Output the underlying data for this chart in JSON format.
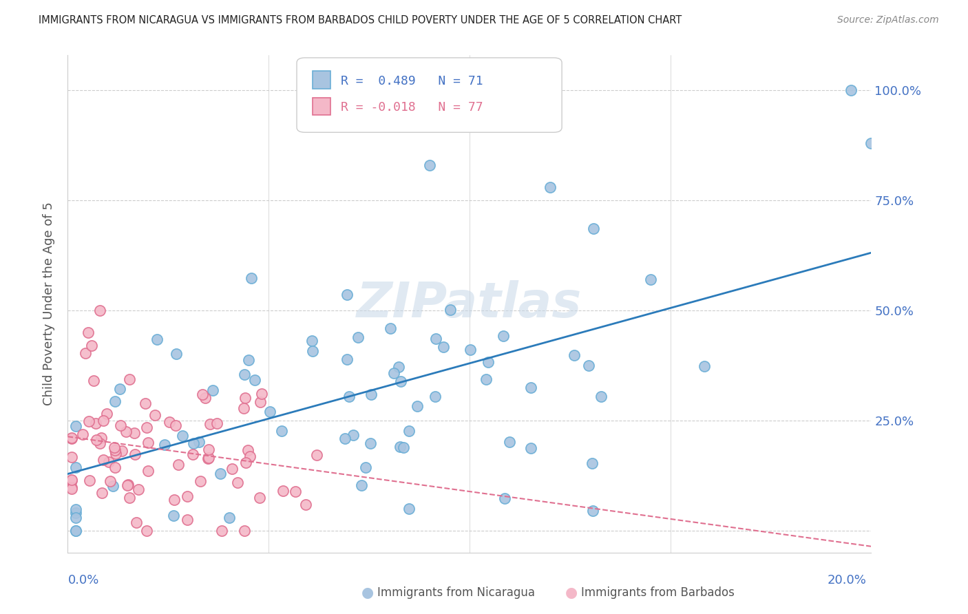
{
  "title": "IMMIGRANTS FROM NICARAGUA VS IMMIGRANTS FROM BARBADOS CHILD POVERTY UNDER THE AGE OF 5 CORRELATION CHART",
  "source": "Source: ZipAtlas.com",
  "ylabel": "Child Poverty Under the Age of 5",
  "ytick_vals": [
    0.0,
    0.25,
    0.5,
    0.75,
    1.0
  ],
  "ytick_labels": [
    "",
    "25.0%",
    "50.0%",
    "75.0%",
    "100.0%"
  ],
  "xlim": [
    0.0,
    0.2
  ],
  "ylim": [
    -0.05,
    1.08
  ],
  "nicaragua_color": "#a8c4e0",
  "nicaragua_edge": "#6aaed6",
  "barbados_color": "#f4b8c8",
  "barbados_edge": "#e07090",
  "nicaragua_line_color": "#2b7bba",
  "barbados_line_color": "#e07090",
  "nicaragua_R": 0.489,
  "nicaragua_N": 71,
  "barbados_R": -0.018,
  "barbados_N": 77,
  "legend_label_nicaragua": "Immigrants from Nicaragua",
  "legend_label_barbados": "Immigrants from Barbados",
  "watermark": "ZIPatlas",
  "grid_color": "#cccccc",
  "title_color": "#222222",
  "source_color": "#888888",
  "ylabel_color": "#555555"
}
